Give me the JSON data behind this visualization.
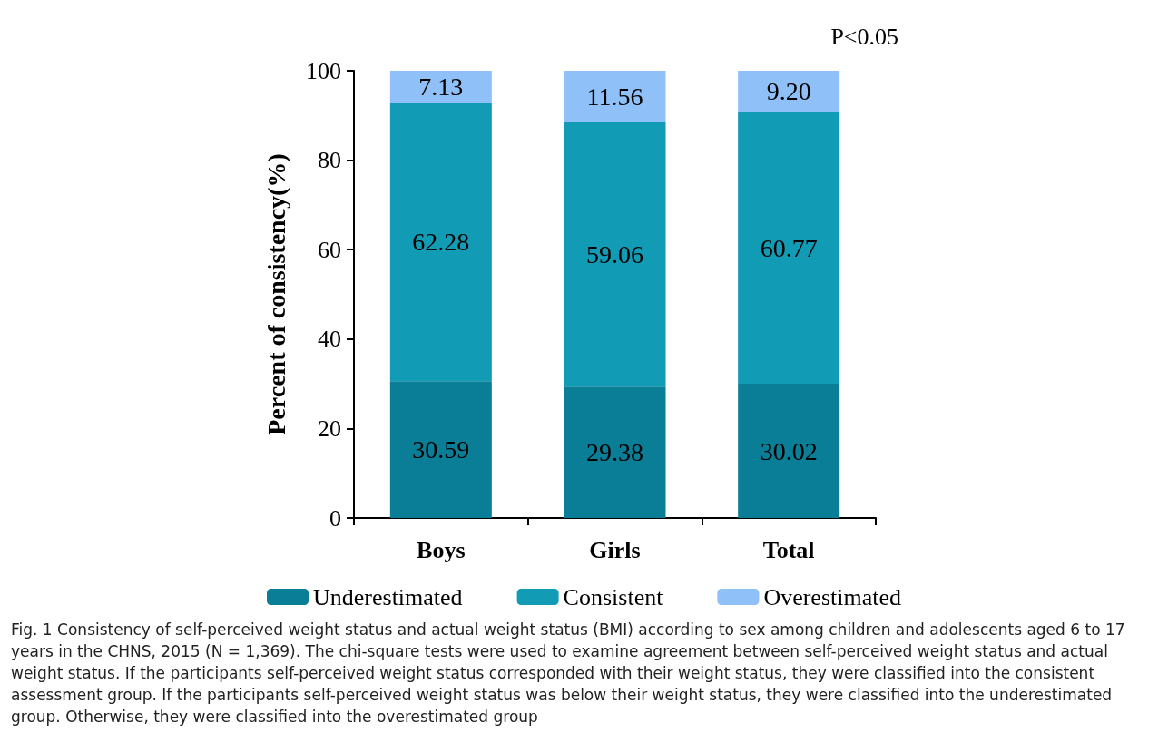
{
  "chart_data": {
    "type": "bar",
    "stacked": true,
    "ylabel": "Percent of consistency(%)",
    "categories": [
      "Boys",
      "Girls",
      "Total"
    ],
    "series": [
      {
        "name": "Underestimated",
        "color": "#0a7e96",
        "values": [
          30.59,
          29.38,
          30.02
        ],
        "value_labels": [
          "30.59",
          "29.38",
          "30.02"
        ]
      },
      {
        "name": "Consistent",
        "color": "#129bb5",
        "values": [
          62.28,
          59.06,
          60.77
        ],
        "value_labels": [
          "62.28",
          "59.06",
          "60.77"
        ]
      },
      {
        "name": "Overestimated",
        "color": "#90c0f8",
        "values": [
          7.13,
          11.56,
          9.2
        ],
        "value_labels": [
          "7.13",
          "11.56",
          "9.20"
        ]
      }
    ],
    "ylim": [
      0,
      100
    ],
    "yticks": [
      0,
      20,
      40,
      60,
      80,
      100
    ],
    "grid": false,
    "legend": "bottom",
    "annotations": [
      "P<0.05",
      "Fig. 1 Consistency of self-perceived weight status and actual weight status (BMI) according to sex among children and adolescents aged 6 to 17 years in the CHNS, 2015 (N = 1,369). The chi-square tests were used to examine agreement between self-perceived weight status and actual weight status. If the participants self-perceived weight status corresponded with their weight status, they were classified into the consistent assessment group. If the participants self-perceived weight status was below their weight status, they were classified into the underestimated group. Otherwise, they were classified into the overestimated group"
    ]
  }
}
